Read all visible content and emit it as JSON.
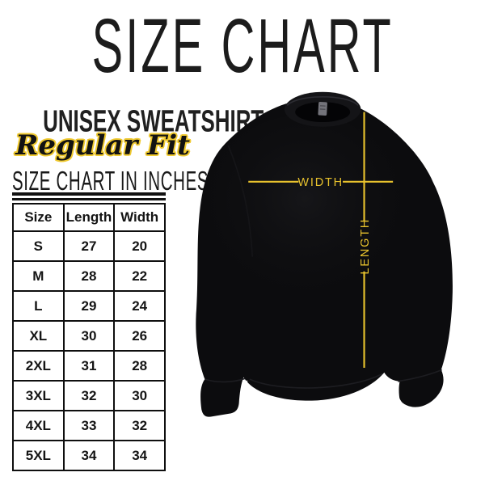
{
  "header": {
    "title": "SIZE CHART",
    "subtitle": "UNISEX SWEATSHIRT",
    "fit": "Regular Fit",
    "table_heading": "SIZE CHART IN INCHES"
  },
  "chart_data": {
    "type": "table",
    "title": "SIZE CHART IN INCHES",
    "units": "inches",
    "columns": [
      "Size",
      "Length",
      "Width"
    ],
    "rows": [
      [
        "S",
        "27",
        "20"
      ],
      [
        "M",
        "28",
        "22"
      ],
      [
        "L",
        "29",
        "24"
      ],
      [
        "XL",
        "30",
        "26"
      ],
      [
        "2XL",
        "31",
        "28"
      ],
      [
        "3XL",
        "32",
        "30"
      ],
      [
        "4XL",
        "33",
        "32"
      ],
      [
        "5XL",
        "34",
        "34"
      ]
    ]
  },
  "diagram": {
    "garment": "black crewneck sweatshirt",
    "width_label": "WIDTH",
    "length_label": "LENGTH"
  },
  "colors": {
    "accent_yellow": "#e8c22d",
    "ink": "#1b1b1b",
    "garment_black": "#0c0c0e",
    "background": "#ffffff"
  }
}
